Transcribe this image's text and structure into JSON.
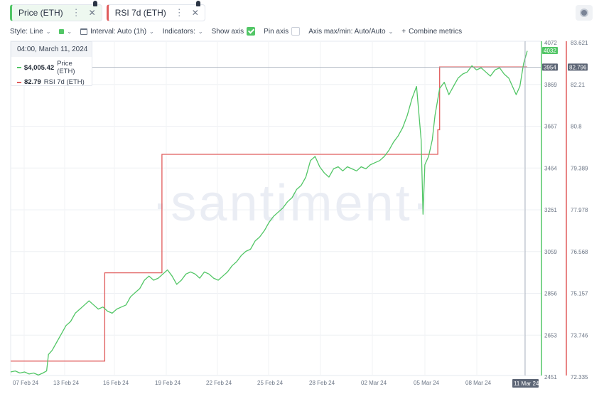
{
  "tabs": [
    {
      "label": "Price (ETH)",
      "color": "#52c666"
    },
    {
      "label": "RSI 7d (ETH)",
      "color": "#e05c5c"
    }
  ],
  "toolbar": {
    "style_label": "Style: Line",
    "interval_label": "Interval: Auto (1h)",
    "indicators_label": "Indicators:",
    "show_axis_label": "Show axis",
    "show_axis_checked": true,
    "pin_axis_label": "Pin axis",
    "pin_axis_checked": false,
    "axis_maxmin_label": "Axis max/min: Auto/Auto",
    "combine_label": "Combine metrics",
    "plus": "+"
  },
  "tooltip": {
    "date": "04:00, March 11, 2024",
    "price_value": "$4,005.42",
    "price_name": "Price (ETH)",
    "rsi_value": "82.79",
    "rsi_name": "RSI 7d (ETH)"
  },
  "watermark": "·santiment·",
  "chart_data": {
    "type": "line",
    "x_ticks": [
      "07 Feb 24",
      "13 Feb 24",
      "16 Feb 24",
      "19 Feb 24",
      "22 Feb 24",
      "25 Feb 24",
      "28 Feb 24",
      "02 Mar 24",
      "05 Mar 24",
      "08 Mar 24",
      "11 Mar 24"
    ],
    "price_axis": {
      "ticks": [
        "4072",
        "3869",
        "3667",
        "3464",
        "3261",
        "3059",
        "2856",
        "2653",
        "2451"
      ],
      "current": "4032",
      "hover": "3954",
      "range": [
        2451,
        4072
      ]
    },
    "rsi_axis": {
      "ticks": [
        "83.621",
        "82.21",
        "80.8",
        "79.389",
        "77.978",
        "76.568",
        "75.157",
        "73.746",
        "72.335"
      ],
      "hover": "82.796",
      "range": [
        72.335,
        83.621
      ]
    },
    "series": [
      {
        "name": "Price (ETH)",
        "color": "#52c666",
        "points": [
          [
            0,
            2475
          ],
          [
            0.5,
            2480
          ],
          [
            1,
            2470
          ],
          [
            1.5,
            2475
          ],
          [
            2,
            2465
          ],
          [
            2.5,
            2470
          ],
          [
            3,
            2460
          ],
          [
            3.5,
            2470
          ],
          [
            3.9,
            2480
          ],
          [
            4.1,
            2560
          ],
          [
            4.5,
            2580
          ],
          [
            5,
            2620
          ],
          [
            5.5,
            2660
          ],
          [
            6,
            2700
          ],
          [
            6.5,
            2720
          ],
          [
            7,
            2760
          ],
          [
            7.5,
            2780
          ],
          [
            8,
            2800
          ],
          [
            8.5,
            2820
          ],
          [
            9,
            2800
          ],
          [
            9.5,
            2780
          ],
          [
            10,
            2790
          ],
          [
            10.5,
            2770
          ],
          [
            11,
            2760
          ],
          [
            11.5,
            2780
          ],
          [
            12,
            2790
          ],
          [
            12.5,
            2800
          ],
          [
            13,
            2840
          ],
          [
            13.5,
            2860
          ],
          [
            14,
            2880
          ],
          [
            14.5,
            2920
          ],
          [
            15,
            2940
          ],
          [
            15.5,
            2920
          ],
          [
            16,
            2930
          ],
          [
            16.5,
            2950
          ],
          [
            17,
            2970
          ],
          [
            17.5,
            2940
          ],
          [
            18,
            2900
          ],
          [
            18.5,
            2920
          ],
          [
            19,
            2950
          ],
          [
            19.5,
            2960
          ],
          [
            20,
            2950
          ],
          [
            20.5,
            2930
          ],
          [
            21,
            2960
          ],
          [
            21.5,
            2950
          ],
          [
            22,
            2930
          ],
          [
            22.5,
            2920
          ],
          [
            23,
            2940
          ],
          [
            23.5,
            2960
          ],
          [
            24,
            2990
          ],
          [
            24.5,
            3010
          ],
          [
            25,
            3040
          ],
          [
            25.5,
            3060
          ],
          [
            26,
            3070
          ],
          [
            26.5,
            3110
          ],
          [
            27,
            3130
          ],
          [
            27.5,
            3160
          ],
          [
            28,
            3200
          ],
          [
            28.5,
            3230
          ],
          [
            29,
            3250
          ],
          [
            29.5,
            3270
          ],
          [
            30,
            3300
          ],
          [
            30.5,
            3320
          ],
          [
            31,
            3360
          ],
          [
            31.5,
            3380
          ],
          [
            32,
            3420
          ],
          [
            32.5,
            3500
          ],
          [
            33,
            3520
          ],
          [
            33.5,
            3470
          ],
          [
            34,
            3440
          ],
          [
            34.5,
            3420
          ],
          [
            35,
            3460
          ],
          [
            35.5,
            3470
          ],
          [
            36,
            3450
          ],
          [
            36.5,
            3470
          ],
          [
            37,
            3460
          ],
          [
            37.5,
            3450
          ],
          [
            38,
            3470
          ],
          [
            38.5,
            3460
          ],
          [
            39,
            3480
          ],
          [
            39.5,
            3490
          ],
          [
            40,
            3500
          ],
          [
            40.5,
            3520
          ],
          [
            41,
            3550
          ],
          [
            41.5,
            3590
          ],
          [
            42,
            3620
          ],
          [
            42.5,
            3660
          ],
          [
            43,
            3720
          ],
          [
            43.5,
            3800
          ],
          [
            44,
            3860
          ],
          [
            44.5,
            3600
          ],
          [
            44.7,
            3240
          ],
          [
            44.9,
            3480
          ],
          [
            45.3,
            3520
          ],
          [
            45.7,
            3600
          ],
          [
            46,
            3720
          ],
          [
            46.5,
            3850
          ],
          [
            47,
            3880
          ],
          [
            47.5,
            3820
          ],
          [
            48,
            3860
          ],
          [
            48.5,
            3900
          ],
          [
            49,
            3920
          ],
          [
            49.5,
            3930
          ],
          [
            50,
            3960
          ],
          [
            50.5,
            3940
          ],
          [
            51,
            3950
          ],
          [
            51.5,
            3930
          ],
          [
            52,
            3910
          ],
          [
            52.5,
            3940
          ],
          [
            53,
            3950
          ],
          [
            53.5,
            3920
          ],
          [
            54,
            3900
          ],
          [
            54.5,
            3850
          ],
          [
            54.8,
            3820
          ],
          [
            55.2,
            3860
          ],
          [
            55.6,
            3970
          ],
          [
            56,
            4032
          ]
        ]
      },
      {
        "name": "RSI 7d (ETH)",
        "color": "#e05c5c",
        "points": [
          [
            0,
            72.87
          ],
          [
            10.2,
            72.87
          ],
          [
            10.2,
            75.85
          ],
          [
            16.4,
            75.85
          ],
          [
            16.4,
            79.85
          ],
          [
            46.3,
            79.85
          ],
          [
            46.3,
            80.68
          ],
          [
            46.5,
            80.68
          ],
          [
            46.5,
            82.8
          ],
          [
            56,
            82.8
          ]
        ]
      }
    ],
    "x_range": [
      0,
      56
    ],
    "grid": true,
    "legend": "top-left"
  }
}
